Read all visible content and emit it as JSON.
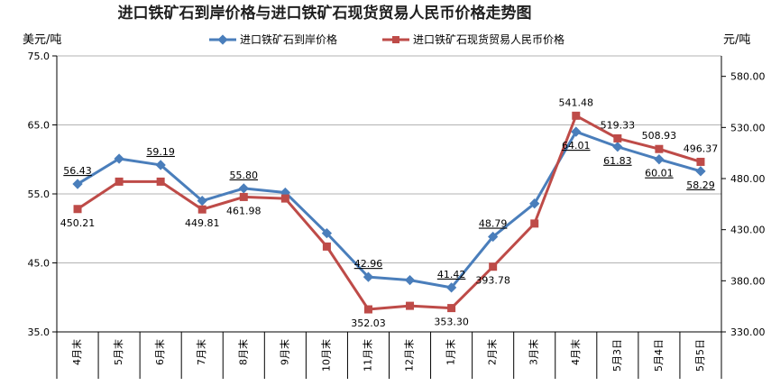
{
  "colors": {
    "series1": "#4A7EBB",
    "series2": "#BE4B48",
    "grid": "#b3b3b3",
    "axis": "#000000"
  },
  "chart_data": {
    "type": "line",
    "title": "进口铁矿石到岸价格与进口铁矿石现货贸易人民币价格走势图",
    "left_unit": "美元/吨",
    "right_unit": "元/吨",
    "categories": [
      "4月末",
      "5月末",
      "6月末",
      "7月末",
      "8月末",
      "9月末",
      "10月末",
      "11月末",
      "12月末",
      "1月末",
      "2月末",
      "3月末",
      "4月末",
      "5月3日",
      "5月4日",
      "5月5日"
    ],
    "y_left": {
      "min": 35.0,
      "max": 75.0,
      "ticks": [
        "35.0",
        "45.0",
        "55.0",
        "65.0",
        "75.0"
      ]
    },
    "y_right": {
      "min": 330.0,
      "max": 600.0,
      "ticks": [
        "330.00",
        "380.00",
        "430.00",
        "480.00",
        "530.00",
        "580.00"
      ]
    },
    "grid": "horizontal",
    "legend_position": "top",
    "series": [
      {
        "name": "进口铁矿石到岸价格",
        "axis": "left",
        "marker": "diamond",
        "values": [
          56.43,
          60.1,
          59.19,
          54.0,
          55.8,
          55.2,
          49.3,
          42.96,
          42.5,
          41.42,
          48.79,
          53.6,
          64.01,
          61.83,
          60.01,
          58.29
        ],
        "labels": [
          "56.43",
          "",
          "59.19",
          "",
          "55.80",
          "",
          "",
          "42.96",
          "",
          "41.42",
          "48.79",
          "",
          "64.01",
          "61.83",
          "60.01",
          "58.29"
        ]
      },
      {
        "name": "进口铁矿石现货贸易人民币价格",
        "axis": "right",
        "marker": "square",
        "values": [
          450.21,
          477.0,
          477.0,
          449.81,
          461.98,
          460.5,
          413.5,
          352.03,
          355.5,
          353.3,
          393.78,
          436.0,
          541.48,
          519.33,
          508.93,
          496.37
        ],
        "labels": [
          "450.21",
          "",
          "",
          "449.81",
          "461.98",
          "",
          "",
          "352.03",
          "",
          "353.30",
          "393.78",
          "",
          "541.48",
          "519.33",
          "508.93",
          "496.37"
        ]
      }
    ]
  }
}
